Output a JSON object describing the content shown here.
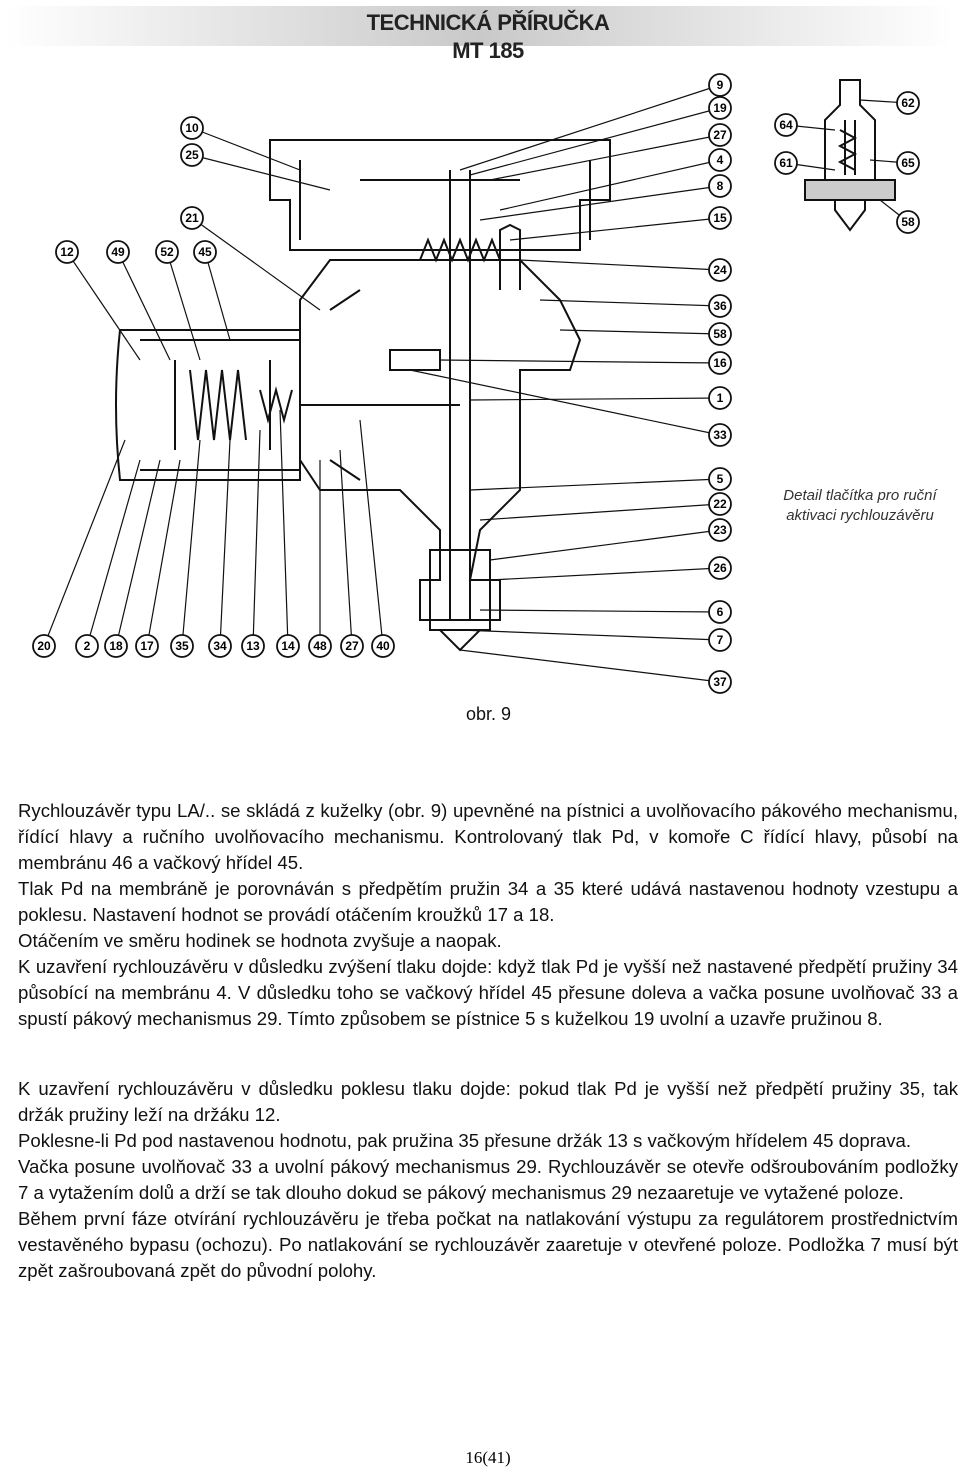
{
  "header": {
    "title": "TECHNICKÁ PŘÍRUČKA",
    "subtitle": "MT 185"
  },
  "figure": {
    "callouts": [
      "10",
      "25",
      "21",
      "12",
      "49",
      "52",
      "45",
      "20",
      "2",
      "18",
      "17",
      "35",
      "34",
      "13",
      "14",
      "48",
      "27",
      "40",
      "9",
      "19",
      "27",
      "4",
      "8",
      "15",
      "24",
      "36",
      "58",
      "16",
      "1",
      "33",
      "5",
      "22",
      "23",
      "26",
      "6",
      "7",
      "37",
      "64",
      "62",
      "61",
      "65",
      "58"
    ],
    "detail_caption": [
      "Detail tlačítka pro ruční",
      "aktivaci rychlouzávěru"
    ],
    "caption": "obr. 9"
  },
  "body": {
    "paragraphs": [
      "Rychlouzávěr typu LA/.. se skládá z kuželky  (obr. 9) upevněné na pístnici a uvolňovacího pákového mechanismu, řídící hlavy a ručního uvolňovacího mechanismu. Kontrolovaný tlak Pd, v komoře C řídící hlavy, působí na membránu 46 a vačkový hřídel 45.",
      "Tlak Pd  na membráně je porovnáván s předpětím pružin 34 a 35 které udává nastavenou hodnoty vzestupu a poklesu. Nastavení hodnot se provádí otáčením kroužků 17 a 18.",
      "Otáčením ve směru hodinek se hodnota zvyšuje a naopak.",
      "K uzavření rychlouzávěru v důsledku zvýšení tlaku dojde: když tlak Pd je vyšší než nastavené předpětí pružiny 34 působící na membránu 4. V důsledku toho se vačkový hřídel 45 přesune doleva a vačka posune uvolňovač 33 a spustí pákový mechanismus 29. Tímto způsobem se pístnice 5 s kuželkou 19 uvolní a uzavře pružinou 8.",
      "K uzavření rychlouzávěru v důsledku poklesu tlaku dojde: pokud tlak  Pd je vyšší než předpětí pružiny 35, tak držák pružiny leží na držáku 12.",
      "Poklesne-li Pd pod nastavenou hodnotu, pak pružina 35 přesune držák 13 s vačkovým hřídelem 45 doprava.",
      "Vačka posune uvolňovač 33 a uvolní pákový mechanismus 29. Rychlouzávěr se otevře odšroubováním podložky 7 a vytažením dolů a drží se tak dlouho dokud se pákový mechanismus 29 nezaaretuje ve vytažené poloze.",
      "Během  první fáze otvírání rychlouzávěru je třeba počkat na natlakování výstupu za regulátorem prostřednictvím vestavěného bypasu (ochozu). Po natlakování se rychlouzávěr zaaretuje v otevřené poloze.  Podložka 7 musí být zpět zašroubovaná zpět do původní polohy."
    ]
  },
  "footer": {
    "page": "16(41)"
  }
}
